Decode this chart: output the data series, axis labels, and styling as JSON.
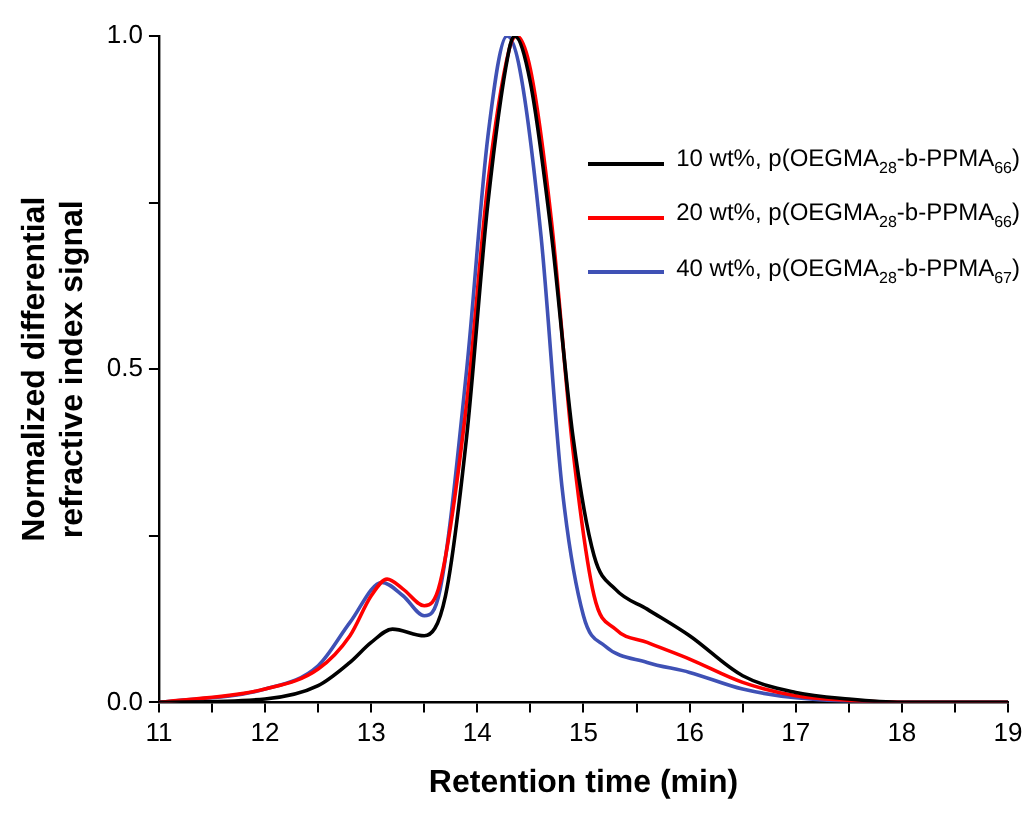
{
  "chart_data": {
    "type": "line",
    "xlabel": "Retention time (min)",
    "ylabel": "Normalized differential refractive index signal",
    "xlim": [
      11,
      19
    ],
    "xticks": [
      11,
      {
        "value": 11.5,
        "label": null
      },
      12,
      {
        "value": 12.5,
        "label": null
      },
      13,
      {
        "value": 13.5,
        "label": null
      },
      14,
      {
        "value": 14.5,
        "label": null
      },
      15,
      {
        "value": 15.5,
        "label": null
      },
      16,
      {
        "value": 16.5,
        "label": null
      },
      17,
      {
        "value": 17.5,
        "label": null
      },
      18,
      {
        "value": 18.5,
        "label": null
      },
      19
    ],
    "ylim": [
      0,
      1
    ],
    "yticks": [
      {
        "value": 0,
        "label": "0.0"
      },
      {
        "value": 0.25,
        "label": null
      },
      {
        "value": 0.5,
        "label": "0.5"
      },
      {
        "value": 0.75,
        "label": null
      },
      {
        "value": 1,
        "label": "1.0"
      }
    ],
    "grid": false,
    "legend": "top right",
    "marker": "none",
    "line_style": "solid",
    "series": [
      {
        "name": "10 wt%, p(OEGMA$_{28}$-b-PPMA$_{66}$)",
        "color": "#000000",
        "x": [
          11,
          12,
          12.5,
          12.8,
          13,
          13.2,
          13.5,
          13.7,
          13.9,
          14.1,
          14.3,
          14.35,
          14.5,
          14.7,
          14.9,
          15.1,
          15.3,
          15.6,
          16,
          16.5,
          17,
          17.5,
          18,
          19
        ],
        "values": [
          0,
          0.005,
          0.025,
          0.06,
          0.09,
          0.11,
          0.1,
          0.16,
          0.4,
          0.75,
          0.98,
          1,
          0.93,
          0.7,
          0.4,
          0.22,
          0.17,
          0.14,
          0.1,
          0.04,
          0.015,
          0.005,
          0,
          0
        ]
      },
      {
        "name": "20 wt%, p(OEGMA$_{28}$-b-PPMA$_{66}$)",
        "color": "#ff0000",
        "x": [
          11,
          12,
          12.5,
          12.8,
          13,
          13.15,
          13.3,
          13.5,
          13.65,
          13.9,
          14.1,
          14.3,
          14.37,
          14.5,
          14.7,
          14.9,
          15.1,
          15.3,
          15.6,
          16,
          16.5,
          17,
          17.5,
          18,
          19
        ],
        "values": [
          0,
          0.02,
          0.05,
          0.1,
          0.16,
          0.185,
          0.17,
          0.145,
          0.18,
          0.45,
          0.78,
          0.98,
          1,
          0.95,
          0.72,
          0.38,
          0.16,
          0.11,
          0.09,
          0.065,
          0.03,
          0.01,
          0.003,
          0,
          0
        ]
      },
      {
        "name": "40 wt%, p(OEGMA$_{28}$-b-PPMA$_{67}$)",
        "color": "#3f51b5",
        "x": [
          11,
          12,
          12.5,
          12.8,
          13.1,
          13.3,
          13.5,
          13.65,
          13.9,
          14.1,
          14.28,
          14.4,
          14.6,
          14.8,
          15,
          15.2,
          15.6,
          16,
          16.5,
          17,
          18,
          19
        ],
        "values": [
          0,
          0.02,
          0.055,
          0.12,
          0.18,
          0.16,
          0.13,
          0.17,
          0.5,
          0.85,
          1,
          0.95,
          0.7,
          0.32,
          0.13,
          0.085,
          0.06,
          0.045,
          0.02,
          0.007,
          0,
          0
        ]
      }
    ]
  }
}
